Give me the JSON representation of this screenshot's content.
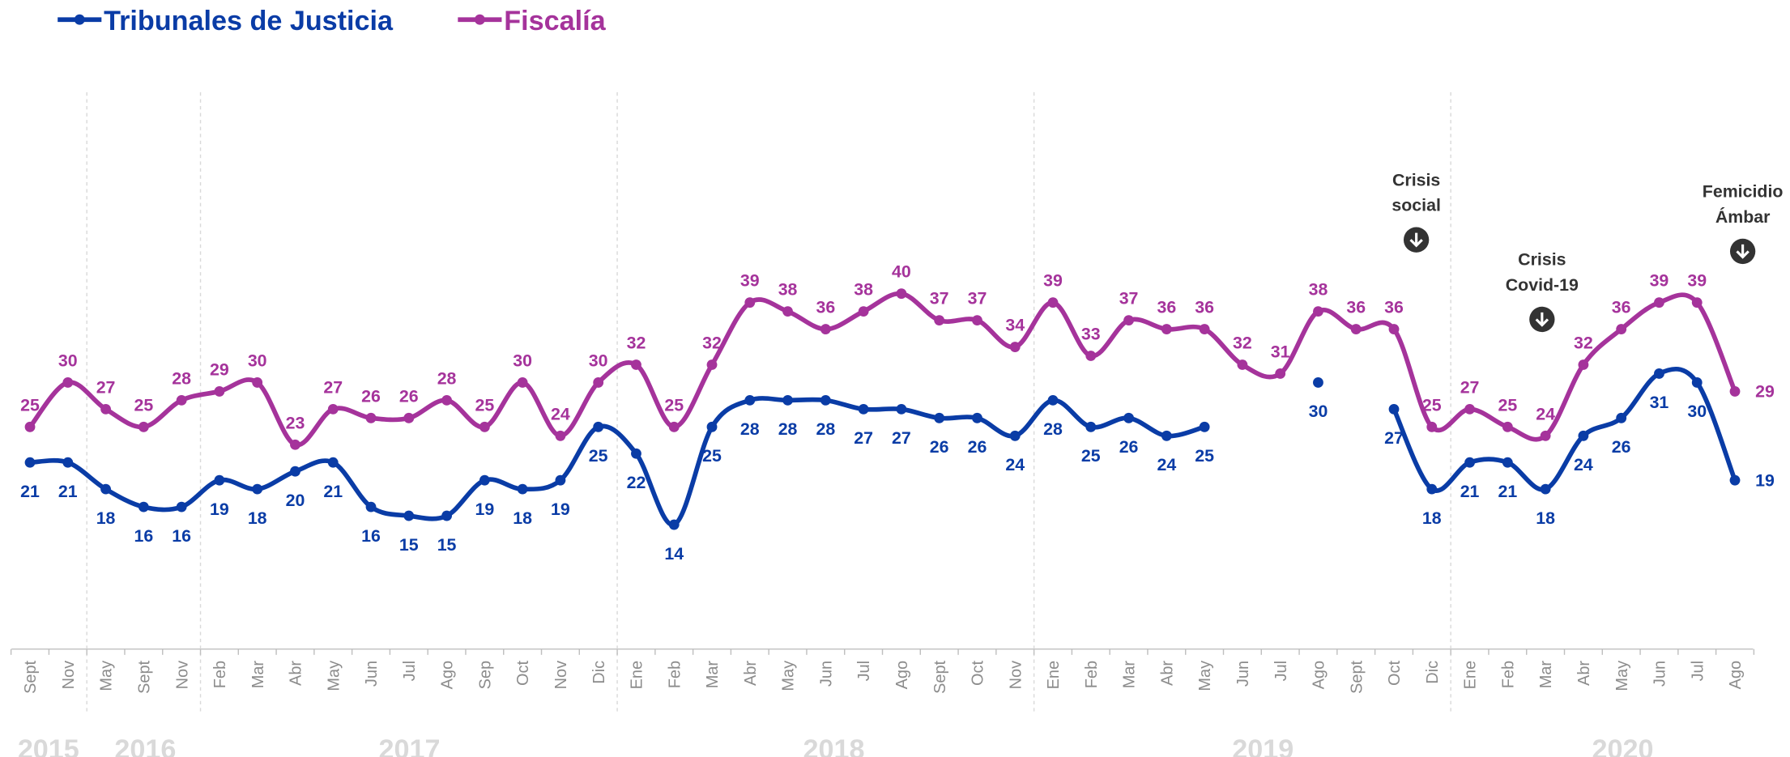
{
  "chart_data": {
    "type": "line",
    "categories": [
      "Sept",
      "Nov",
      "May",
      "Sept",
      "Nov",
      "Feb",
      "Mar",
      "Abr",
      "May",
      "Jun",
      "Jul",
      "Ago",
      "Sep",
      "Oct",
      "Nov",
      "Dic",
      "Ene",
      "Feb",
      "Mar",
      "Abr",
      "May",
      "Jun",
      "Jul",
      "Ago",
      "Sept",
      "Oct",
      "Nov",
      "Ene",
      "Feb",
      "Mar",
      "Abr",
      "May",
      "Jun",
      "Jul",
      "Ago",
      "Sept",
      "Oct",
      "Dic",
      "Ene",
      "Feb",
      "Mar",
      "Abr",
      "May",
      "Jun",
      "Jul",
      "Ago"
    ],
    "years": [
      "2015",
      "2016",
      "2017",
      "2018",
      "2019",
      "2020"
    ],
    "series": [
      {
        "name": "Tribunales de Justicia",
        "color": "#0a3ca6",
        "values": [
          21,
          21,
          18,
          16,
          16,
          19,
          18,
          20,
          21,
          16,
          15,
          15,
          19,
          18,
          19,
          25,
          22,
          14,
          25,
          28,
          28,
          28,
          27,
          27,
          26,
          26,
          24,
          28,
          25,
          26,
          24,
          25,
          null,
          null,
          30,
          null,
          27,
          18,
          21,
          21,
          18,
          24,
          26,
          31,
          30,
          19
        ]
      },
      {
        "name": "Fiscalía",
        "color": "#a5339b",
        "values": [
          25,
          30,
          27,
          25,
          28,
          29,
          30,
          23,
          27,
          26,
          26,
          28,
          25,
          30,
          24,
          30,
          32,
          25,
          32,
          39,
          38,
          36,
          38,
          40,
          37,
          37,
          34,
          39,
          33,
          37,
          36,
          36,
          32,
          31,
          38,
          36,
          36,
          25,
          27,
          25,
          24,
          32,
          36,
          39,
          39,
          29
        ]
      }
    ],
    "annotations": [
      [
        "Crisis",
        "social"
      ],
      [
        "Crisis",
        "Covid-19"
      ],
      [
        "Femicidio",
        "Ámbar"
      ]
    ],
    "ylim": [
      0,
      65
    ]
  }
}
